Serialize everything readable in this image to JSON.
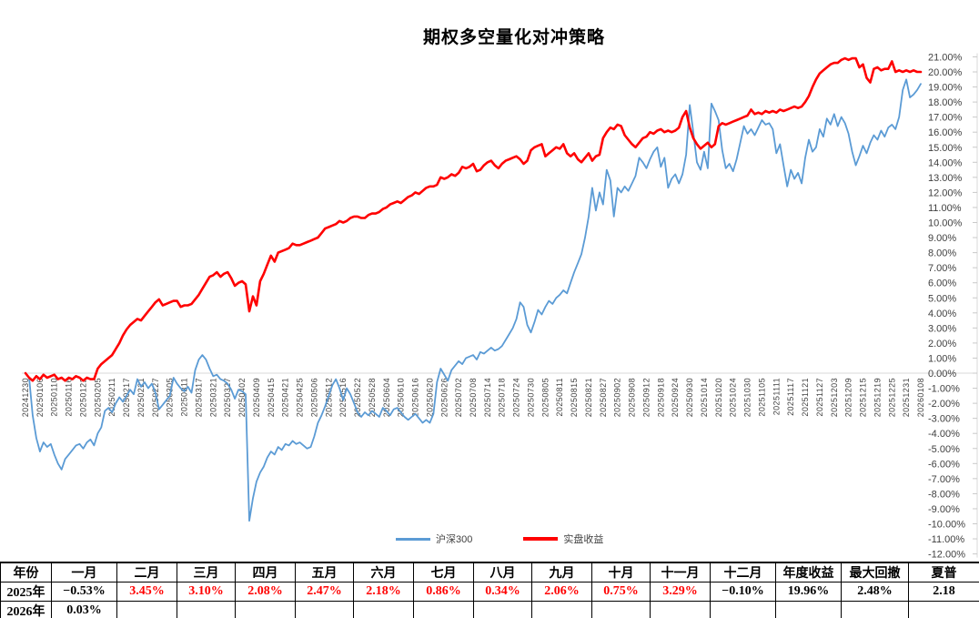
{
  "title": "期权多空量化对冲策略",
  "legend": [
    {
      "label": "沪深300",
      "color": "#5B9BD5"
    },
    {
      "label": "实盘收益",
      "color": "#FF0000"
    }
  ],
  "chart_data": {
    "type": "line",
    "title": "期权多空量化对冲策略",
    "grid": "zero-line-only",
    "legend_position": "bottom",
    "y_axis": {
      "min": -12,
      "max": 21,
      "step": 1,
      "format": "0.00%",
      "side": "right",
      "label_color": "#404040",
      "axis_color": "#D9D9D9"
    },
    "x_axis": {
      "label_rotation": -90,
      "label_color": "#404040",
      "points_per_tick": 4
    },
    "x_tick_labels": [
      "20241230",
      "20250106",
      "20250110",
      "20250116",
      "20250122",
      "20250205",
      "20250211",
      "20250217",
      "20250221",
      "20250227",
      "20250305",
      "20250311",
      "20250317",
      "20250321",
      "20250327",
      "20250402",
      "20250409",
      "20250415",
      "20250421",
      "20250425",
      "20250506",
      "20250512",
      "20250516",
      "20250522",
      "20250528",
      "20250604",
      "20250610",
      "20250616",
      "20250620",
      "20250626",
      "20250702",
      "20250708",
      "20250714",
      "20250718",
      "20250724",
      "20250730",
      "20250805",
      "20250811",
      "20250815",
      "20250821",
      "20250827",
      "20250902",
      "20250908",
      "20250912",
      "20250918",
      "20250924",
      "20250930",
      "20251014",
      "20251020",
      "20251024",
      "20251030",
      "20251105",
      "20251111",
      "20251117",
      "20251121",
      "20251127",
      "20251203",
      "20251209",
      "20251215",
      "20251219",
      "20251225",
      "20251231",
      "20260108"
    ],
    "series": [
      {
        "name": "沪深300",
        "color": "#5B9BD5",
        "stroke_width": 1.8,
        "values": [
          0.0,
          -0.3,
          -2.8,
          -4.3,
          -5.2,
          -4.6,
          -4.9,
          -4.7,
          -5.4,
          -6.0,
          -6.4,
          -5.7,
          -5.4,
          -5.1,
          -4.8,
          -4.7,
          -5.0,
          -4.6,
          -4.4,
          -4.8,
          -4.0,
          -3.6,
          -2.5,
          -2.3,
          -2.6,
          -2.0,
          -1.6,
          -1.9,
          -1.5,
          -1.1,
          -1.4,
          -0.4,
          -0.9,
          -0.6,
          -1.0,
          -0.7,
          -1.3,
          -2.4,
          -2.1,
          -1.8,
          -1.5,
          -0.3,
          -0.7,
          -1.0,
          -1.2,
          -0.9,
          -1.3,
          0.2,
          0.9,
          1.2,
          0.9,
          0.3,
          -0.2,
          -0.1,
          -0.4,
          -0.5,
          -0.7,
          -1.1,
          -1.7,
          -1.1,
          -1.2,
          -1.4,
          -9.8,
          -8.3,
          -7.2,
          -6.6,
          -6.2,
          -5.6,
          -5.2,
          -5.4,
          -4.9,
          -5.1,
          -4.7,
          -4.8,
          -4.5,
          -4.7,
          -4.6,
          -4.8,
          -5.0,
          -4.9,
          -4.2,
          -3.3,
          -2.8,
          -2.2,
          -1.5,
          -0.8,
          -0.4,
          -1.0,
          -1.8,
          -1.0,
          -1.4,
          -2.0,
          -2.6,
          -2.9,
          -2.6,
          -2.8,
          -2.5,
          -2.7,
          -2.9,
          -2.3,
          -2.5,
          -2.8,
          -2.4,
          -2.3,
          -2.6,
          -2.9,
          -3.1,
          -2.9,
          -2.7,
          -3.0,
          -3.3,
          -3.1,
          -3.3,
          -2.7,
          -0.6,
          0.3,
          -0.1,
          -0.5,
          0.2,
          0.5,
          0.8,
          0.6,
          1.0,
          1.1,
          1.2,
          0.9,
          1.4,
          1.3,
          1.5,
          1.7,
          1.5,
          1.6,
          1.8,
          2.2,
          2.6,
          3.0,
          3.6,
          4.7,
          4.4,
          3.2,
          2.7,
          3.4,
          4.2,
          3.9,
          4.4,
          4.8,
          4.6,
          5.0,
          5.2,
          5.5,
          5.3,
          6.0,
          6.7,
          7.3,
          7.9,
          9.0,
          10.4,
          12.3,
          10.8,
          12.0,
          11.2,
          13.5,
          12.8,
          10.4,
          12.3,
          12.0,
          12.4,
          12.1,
          12.6,
          13.1,
          14.3,
          14.0,
          13.6,
          14.2,
          14.7,
          15.0,
          13.7,
          14.3,
          12.3,
          12.9,
          13.2,
          12.6,
          13.2,
          14.5,
          17.8,
          16.0,
          14.0,
          13.5,
          14.7,
          13.6,
          17.9,
          17.4,
          16.8,
          14.8,
          13.6,
          13.9,
          13.4,
          14.2,
          15.3,
          16.4,
          15.9,
          16.2,
          15.8,
          16.3,
          16.8,
          16.5,
          16.6,
          16.2,
          14.6,
          15.2,
          13.8,
          12.4,
          13.5,
          12.9,
          13.3,
          12.6,
          14.3,
          15.5,
          14.7,
          15.0,
          16.2,
          15.7,
          16.9,
          16.5,
          17.2,
          16.4,
          17.0,
          16.6,
          15.9,
          14.7,
          13.8,
          14.4,
          15.1,
          14.6,
          15.3,
          15.8,
          15.5,
          16.1,
          15.7,
          16.3,
          16.5,
          16.2,
          17.0,
          18.8,
          19.5,
          18.3,
          18.5,
          18.8,
          19.2
        ]
      },
      {
        "name": "实盘收益",
        "color": "#FF0000",
        "stroke_width": 2.6,
        "values": [
          0.0,
          -0.3,
          -0.5,
          -0.2,
          -0.4,
          -0.1,
          -0.3,
          -0.2,
          -0.1,
          -0.4,
          -0.3,
          -0.5,
          -0.3,
          -0.4,
          -0.2,
          -0.3,
          -0.5,
          -0.3,
          -0.4,
          -0.4,
          0.3,
          0.6,
          0.8,
          1.0,
          1.2,
          1.6,
          2.0,
          2.5,
          2.9,
          3.2,
          3.4,
          3.6,
          3.5,
          3.8,
          4.1,
          4.4,
          4.7,
          4.9,
          4.5,
          4.6,
          4.7,
          4.8,
          4.8,
          4.4,
          4.5,
          4.5,
          4.6,
          4.9,
          5.2,
          5.6,
          6.0,
          6.4,
          6.5,
          6.7,
          6.4,
          6.6,
          6.7,
          6.3,
          5.8,
          6.0,
          6.1,
          5.9,
          4.1,
          5.1,
          4.5,
          6.1,
          6.6,
          7.2,
          7.8,
          7.4,
          8.0,
          8.1,
          8.2,
          8.3,
          8.6,
          8.5,
          8.5,
          8.6,
          8.7,
          8.8,
          8.9,
          9.0,
          9.3,
          9.6,
          9.7,
          9.8,
          9.9,
          10.1,
          10.0,
          10.1,
          10.3,
          10.4,
          10.4,
          10.3,
          10.3,
          10.5,
          10.6,
          10.6,
          10.7,
          10.9,
          11.0,
          11.2,
          11.3,
          11.4,
          11.3,
          11.5,
          11.7,
          11.8,
          12.0,
          11.9,
          12.1,
          12.3,
          12.4,
          12.4,
          12.5,
          13.0,
          12.9,
          13.0,
          13.2,
          13.1,
          13.3,
          13.7,
          13.6,
          13.7,
          13.9,
          13.4,
          13.5,
          13.8,
          14.0,
          14.1,
          13.8,
          13.6,
          13.9,
          14.1,
          14.2,
          14.3,
          14.4,
          14.2,
          13.9,
          14.1,
          14.8,
          15.0,
          15.1,
          15.2,
          14.4,
          14.6,
          14.8,
          15.0,
          14.9,
          15.2,
          14.6,
          14.4,
          14.6,
          14.2,
          14.0,
          14.3,
          14.6,
          14.1,
          14.4,
          14.5,
          15.6,
          16.0,
          16.3,
          16.2,
          16.5,
          16.4,
          15.8,
          15.5,
          15.2,
          15.0,
          15.3,
          15.6,
          15.7,
          16.0,
          15.9,
          16.1,
          16.2,
          16.0,
          16.1,
          16.0,
          16.1,
          16.3,
          17.0,
          17.4,
          16.3,
          15.6,
          15.2,
          14.9,
          15.1,
          15.3,
          15.0,
          15.2,
          16.4,
          16.6,
          16.5,
          16.6,
          16.7,
          16.8,
          16.9,
          17.0,
          17.1,
          17.5,
          17.2,
          17.3,
          17.2,
          17.4,
          17.3,
          17.4,
          17.3,
          17.5,
          17.4,
          17.5,
          17.6,
          17.7,
          17.6,
          17.7,
          18.0,
          18.4,
          19.0,
          19.5,
          19.9,
          20.1,
          20.3,
          20.5,
          20.6,
          20.6,
          20.8,
          20.9,
          20.8,
          20.9,
          20.9,
          20.3,
          20.5,
          19.6,
          19.3,
          20.2,
          20.3,
          20.1,
          20.2,
          20.2,
          20.7,
          20.0,
          20.1,
          20.0,
          20.1,
          20.0,
          20.1,
          20.0,
          20.0
        ]
      }
    ]
  },
  "table": {
    "headers": [
      "年份",
      "一月",
      "二月",
      "三月",
      "四月",
      "五月",
      "六月",
      "七月",
      "八月",
      "九月",
      "十月",
      "十一月",
      "十二月",
      "年度收益",
      "最大回撤",
      "夏普"
    ],
    "rows": [
      [
        {
          "t": "2025年"
        },
        {
          "t": "−0.53%"
        },
        {
          "t": "3.45%",
          "red": true
        },
        {
          "t": "3.10%",
          "red": true
        },
        {
          "t": "2.08%",
          "red": true
        },
        {
          "t": "2.47%",
          "red": true
        },
        {
          "t": "2.18%",
          "red": true
        },
        {
          "t": "0.86%",
          "red": true
        },
        {
          "t": "0.34%",
          "red": true
        },
        {
          "t": "2.06%",
          "red": true
        },
        {
          "t": "0.75%",
          "red": true
        },
        {
          "t": "3.29%",
          "red": true
        },
        {
          "t": "−0.10%"
        },
        {
          "t": "19.96%"
        },
        {
          "t": "2.48%"
        },
        {
          "t": "2.18"
        }
      ],
      [
        {
          "t": "2026年"
        },
        {
          "t": "0.03%"
        },
        {
          "t": ""
        },
        {
          "t": ""
        },
        {
          "t": ""
        },
        {
          "t": ""
        },
        {
          "t": ""
        },
        {
          "t": ""
        },
        {
          "t": ""
        },
        {
          "t": ""
        },
        {
          "t": ""
        },
        {
          "t": ""
        },
        {
          "t": ""
        },
        {
          "t": ""
        },
        {
          "t": ""
        },
        {
          "t": ""
        }
      ]
    ]
  }
}
